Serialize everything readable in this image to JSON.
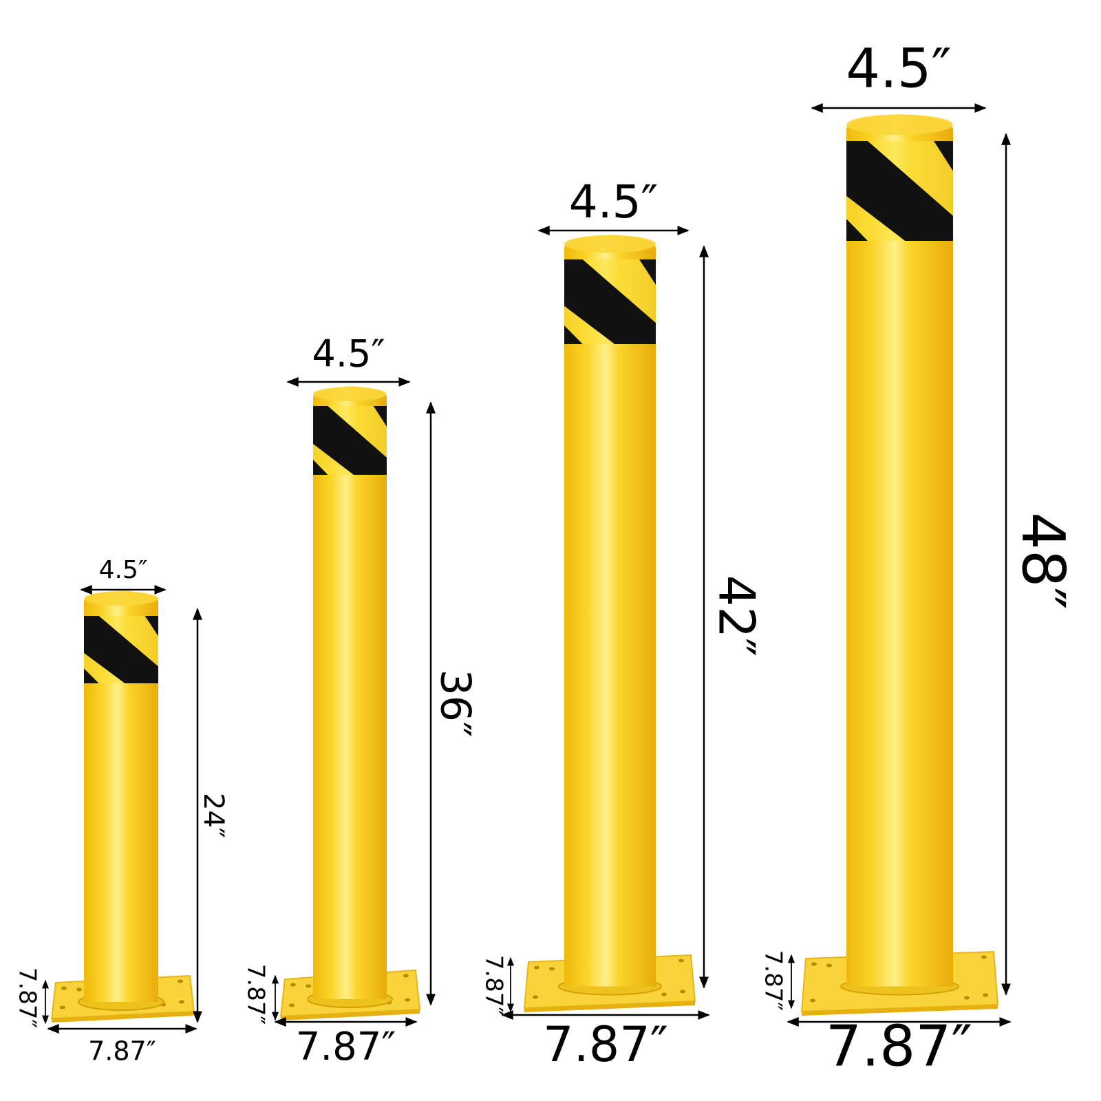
{
  "colors": {
    "pole": "#f5c518",
    "pole_light": "#fde24a",
    "pole_dark": "#e0a90c",
    "stripe": "#111111",
    "plate": "#f7cf2a",
    "dimension": "#000000"
  },
  "bollards": [
    {
      "diameter": "4.5″",
      "height": "24″",
      "plate_depth": "7.87″",
      "plate_width": "7.87″"
    },
    {
      "diameter": "4.5″",
      "height": "36″",
      "plate_depth": "7.87″",
      "plate_width": "7.87″"
    },
    {
      "diameter": "4.5″",
      "height": "42″",
      "plate_depth": "7.87″",
      "plate_width": "7.87″"
    },
    {
      "diameter": "4.5″",
      "height": "48″",
      "plate_depth": "7.87″",
      "plate_width": "7.87″"
    }
  ]
}
